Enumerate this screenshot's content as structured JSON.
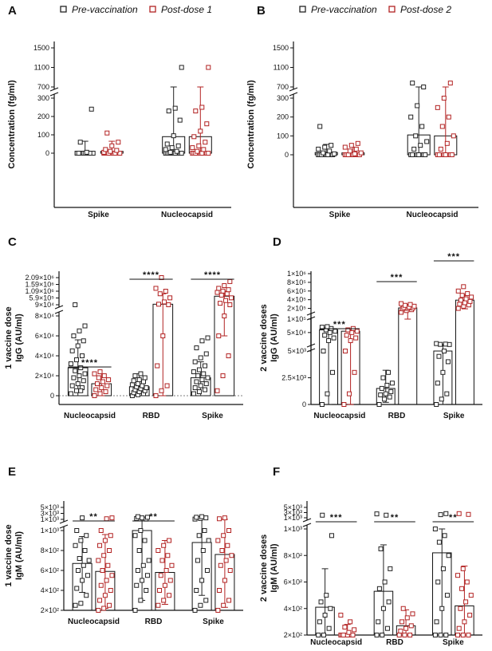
{
  "colors": {
    "pre": "#222222",
    "post": "#b22222",
    "axis": "#111111"
  },
  "chart_data": [
    {
      "panel": "A",
      "type": "bar",
      "legend": [
        "Pre-vaccination",
        "Post-dose 1"
      ],
      "ylabel": "Concentration (fg/ml)",
      "categories": [
        "Spike",
        "Nucleocapsid"
      ],
      "ticks_low": [
        "0",
        "100",
        "200",
        "300"
      ],
      "ticks_high": [
        "700",
        "1100",
        "1500"
      ],
      "series": [
        {
          "name": "Pre-vaccination",
          "means": [
            0,
            90
          ],
          "err": [
            [
              -20,
              65
            ],
            [
              -5,
              360
            ]
          ],
          "points": [
            [
              0,
              0,
              0,
              0,
              0,
              0,
              0,
              0,
              0,
              0,
              0,
              0,
              0,
              0,
              0,
              0,
              240,
              60,
              5
            ],
            [
              0,
              0,
              0,
              0,
              0,
              0,
              0,
              0,
              0,
              5,
              10,
              20,
              30,
              40,
              50,
              95,
              180,
              230,
              245,
              1100
            ]
          ]
        },
        {
          "name": "Post-dose 1",
          "means": [
            10,
            90
          ],
          "err": [
            [
              -20,
              65
            ],
            [
              -5,
              370
            ]
          ],
          "points": [
            [
              0,
              0,
              0,
              0,
              0,
              0,
              0,
              0,
              0,
              0,
              0,
              5,
              10,
              15,
              20,
              40,
              60,
              110
            ],
            [
              0,
              0,
              0,
              0,
              0,
              0,
              0,
              0,
              0,
              10,
              20,
              30,
              40,
              60,
              90,
              120,
              160,
              230,
              250,
              1100
            ]
          ]
        }
      ],
      "significance": []
    },
    {
      "panel": "B",
      "type": "bar",
      "legend": [
        "Pre-vaccination",
        "Post-dose 2"
      ],
      "ylabel": "Concentration (fg/ml)",
      "categories": [
        "Spike",
        "Nucleocapsid"
      ],
      "ticks_low": [
        "0",
        "100",
        "200",
        "300"
      ],
      "ticks_high": [
        "700",
        "1100",
        "1500"
      ],
      "series": [
        {
          "name": "Pre-vaccination",
          "means": [
            12,
            105
          ],
          "err": [
            [
              -15,
              55
            ],
            [
              -10,
              430
            ]
          ],
          "points": [
            [
              0,
              0,
              0,
              0,
              0,
              0,
              0,
              0,
              5,
              10,
              20,
              30,
              40,
              50,
              150
            ],
            [
              0,
              0,
              0,
              0,
              0,
              0,
              30,
              50,
              70,
              100,
              150,
              200,
              260,
              310,
              780
            ]
          ]
        },
        {
          "name": "Post-dose 2",
          "means": [
            10,
            100
          ],
          "err": [
            [
              -15,
              40
            ],
            [
              -10,
              430
            ]
          ],
          "points": [
            [
              0,
              0,
              0,
              0,
              0,
              0,
              0,
              5,
              10,
              20,
              30,
              40,
              50,
              60
            ],
            [
              0,
              0,
              0,
              0,
              0,
              0,
              30,
              60,
              100,
              150,
              200,
              250,
              300,
              780
            ]
          ]
        }
      ],
      "significance": []
    },
    {
      "panel": "C",
      "type": "bar",
      "ylabel": "1 vaccine dose IgG (AU/ml)",
      "categories": [
        "Nucleocapsid",
        "RBD",
        "Spike"
      ],
      "ticks_low": [
        "0",
        "2×10⁴",
        "4×10⁴",
        "6×10⁴",
        "8×10⁴"
      ],
      "ticks_high": [
        "9×10⁴",
        "5.9×10⁵",
        "1.09×10⁶",
        "1.59×10⁶",
        "2.09×10⁶"
      ],
      "series": [
        {
          "name": "Pre-vaccination",
          "means": [
            28000,
            9000,
            18000
          ],
          "err": [
            [
              0,
              56000
            ],
            [
              0,
              22000
            ],
            [
              0,
              34000
            ]
          ],
          "points": [
            [
              2000,
              5000,
              8000,
              10000,
              12000,
              15000,
              18000,
              20000,
              22000,
              25000,
              28000,
              32000,
              36000,
              40000,
              45000,
              50000,
              55000,
              60000,
              65000,
              70000,
              82000,
              5000
            ],
            [
              0,
              1000,
              2000,
              3000,
              4000,
              5000,
              6000,
              7000,
              8000,
              9000,
              10000,
              11000,
              12000,
              14000,
              15000,
              16000,
              18000,
              20000,
              22000
            ],
            [
              2000,
              4000,
              6000,
              8000,
              10000,
              12000,
              14000,
              16000,
              18000,
              20000,
              22000,
              24000,
              26000,
              30000,
              34000,
              38000,
              42000,
              48000,
              55000,
              58000
            ]
          ]
        },
        {
          "name": "Post-dose 1",
          "means": [
            12000,
            130000,
            720000
          ],
          "err": [
            [
              0,
              22000
            ],
            [
              -10000,
              900000
            ],
            [
              60000,
              1100000
            ]
          ],
          "points": [
            [
              0,
              2000,
              4000,
              6000,
              8000,
              10000,
              12000,
              14000,
              16000,
              18000,
              20000,
              22000,
              24000
            ],
            [
              0,
              5000,
              10000,
              30000,
              60000,
              92000,
              130000,
              300000,
              600000,
              900000,
              1090000,
              1300000,
              2090000
            ],
            [
              5000,
              20000,
              40000,
              60000,
              80000,
              90000,
              200000,
              400000,
              600000,
              800000,
              900000,
              1000000,
              1100000,
              1200000,
              1300000,
              1500000,
              1800000
            ]
          ]
        }
      ],
      "significance": [
        {
          "pair": "Nucleocapsid",
          "label": "****"
        },
        {
          "pair": "RBD",
          "label": "****"
        },
        {
          "pair": "Spike",
          "label": "****"
        }
      ]
    },
    {
      "panel": "D",
      "type": "bar",
      "ylabel": "2 vaccine doses IgG (AU/ml)",
      "categories": [
        "Nucleocapsid",
        "RBD",
        "Spike"
      ],
      "ticks_low": [
        "0",
        "2.5×10³",
        "5×10³",
        "5×10⁴"
      ],
      "ticks_high": [
        "1×10⁵",
        "2×10⁵",
        "4×10⁵",
        "6×10⁵",
        "8×10⁵",
        "1×10⁶"
      ],
      "series": [
        {
          "name": "Pre-vaccination",
          "means": [
            60000,
            1500,
            5000
          ],
          "err": [
            [
              0,
              70000
            ],
            [
              200,
              3200
            ],
            [
              0,
              6000
            ]
          ],
          "points": [
            [
              0,
              1000,
              3000,
              5000,
              20000,
              30000,
              40000,
              50000,
              55000,
              60000,
              65000,
              70000,
              72000
            ],
            [
              0,
              500,
              700,
              900,
              1000,
              1200,
              1500,
              1800,
              2000,
              2500,
              3000
            ],
            [
              0,
              500,
              1000,
              2000,
              3000,
              4000,
              4500,
              5000,
              5500,
              6000,
              7000,
              9000
            ]
          ]
        },
        {
          "name": "Post-dose 2",
          "means": [
            55000,
            210000,
            390000
          ],
          "err": [
            [
              0,
              60000
            ],
            [
              100000,
              290000
            ],
            [
              190000,
              520000
            ]
          ],
          "points": [
            [
              0,
              1000,
              3000,
              5000,
              20000,
              30000,
              40000,
              50000,
              55000,
              60000,
              65000
            ],
            [
              110000,
              150000,
              170000,
              190000,
              200000,
              210000,
              220000,
              230000,
              250000,
              270000,
              290000,
              310000
            ],
            [
              200000,
              250000,
              280000,
              300000,
              330000,
              360000,
              390000,
              420000,
              460000,
              500000,
              540000,
              600000,
              700000
            ]
          ]
        }
      ],
      "significance": [
        {
          "pair": "Nucleocapsid",
          "label": "***"
        },
        {
          "pair": "RBD",
          "label": "***"
        },
        {
          "pair": "Spike",
          "label": "***"
        }
      ]
    },
    {
      "panel": "E",
      "type": "bar",
      "ylabel": "1 vaccine dose IgM (AU/ml)",
      "categories": [
        "Nucleocapsid",
        "RBD",
        "Spike"
      ],
      "ticks_low": [
        "2×10²",
        "4×10²",
        "6×10²",
        "8×10²",
        "1×10³"
      ],
      "ticks_high": [
        "1×10³",
        "3×10³",
        "5×10³"
      ],
      "series": [
        {
          "name": "Pre-vaccination",
          "means": [
            670,
            1000,
            880
          ],
          "err": [
            [
              380,
              940
            ],
            [
              300,
              1600
            ],
            [
              350,
              1300
            ]
          ],
          "points": [
            [
              250,
              270,
              350,
              420,
              500,
              550,
              600,
              650,
              700,
              720,
              800,
              850,
              900,
              950,
              1000,
              1500
            ],
            [
              200,
              300,
              400,
              450,
              500,
              550,
              600,
              650,
              700,
              800,
              900,
              950,
              1000,
              1100,
              1300,
              1500,
              1700,
              1900
            ],
            [
              200,
              250,
              300,
              400,
              500,
              600,
              700,
              800,
              900,
              950,
              1000,
              1100,
              1300,
              1500,
              1700,
              1900
            ]
          ]
        },
        {
          "name": "Post-dose 1",
          "means": [
            590,
            580,
            760
          ],
          "err": [
            [
              220,
              960
            ],
            [
              260,
              900
            ],
            [
              230,
              1020
            ]
          ],
          "points": [
            [
              200,
              220,
              250,
              300,
              350,
              400,
              450,
              500,
              550,
              600,
              650,
              700,
              750,
              800,
              850,
              900,
              950,
              1000,
              1200,
              1500
            ],
            [
              250,
              300,
              350,
              400,
              450,
              500,
              550,
              600,
              650,
              700,
              750,
              800,
              850,
              900
            ],
            [
              200,
              250,
              300,
              400,
              500,
              600,
              650,
              700,
              750,
              800,
              850,
              900,
              950,
              1000,
              1200,
              1500
            ]
          ]
        }
      ],
      "significance": [
        {
          "pair": "Nucleocapsid",
          "label": "**"
        },
        {
          "pair": "RBD",
          "label": "**"
        }
      ]
    },
    {
      "panel": "F",
      "type": "bar",
      "ylabel": "2 vaccine doses IgM (AU/ml)",
      "categories": [
        "Nucleocapsid",
        "RBD",
        "Spike"
      ],
      "ticks_low": [
        "2×10²",
        "4×10²",
        "6×10²",
        "8×10²",
        "1×10³"
      ],
      "ticks_high": [
        "1×10³",
        "3×10³",
        "5×10³"
      ],
      "series": [
        {
          "name": "Pre-vaccination",
          "means": [
            410,
            530,
            820
          ],
          "err": [
            [
              120,
              700
            ],
            [
              200,
              880
            ],
            [
              80,
              1000
            ]
          ],
          "points": [
            [
              100,
              150,
              250,
              300,
              350,
              400,
              450,
              500,
              950,
              2000
            ],
            [
              100,
              150,
              250,
              300,
              400,
              450,
              550,
              600,
              700,
              850,
              2000,
              2500
            ],
            [
              100,
              150,
              200,
              300,
              400,
              500,
              600,
              700,
              800,
              900,
              950,
              1000,
              2200,
              2600
            ]
          ]
        },
        {
          "name": "Post-dose 2",
          "means": [
            190,
            270,
            420
          ],
          "err": [
            [
              100,
              280
            ],
            [
              150,
              390
            ],
            [
              150,
              720
            ]
          ],
          "points": [
            [
              80,
              100,
              120,
              150,
              170,
              180,
              200,
              220,
              240,
              260,
              300,
              350
            ],
            [
              150,
              180,
              200,
              230,
              250,
              270,
              300,
              330,
              360,
              400
            ],
            [
              100,
              150,
              200,
              250,
              300,
              350,
              400,
              450,
              500,
              550,
              600,
              650,
              700,
              2300,
              2600
            ]
          ]
        }
      ],
      "significance": [
        {
          "pair": "Nucleocapsid",
          "label": "***"
        },
        {
          "pair": "RBD",
          "label": "**"
        },
        {
          "pair": "Spike",
          "label": "**"
        }
      ]
    }
  ]
}
